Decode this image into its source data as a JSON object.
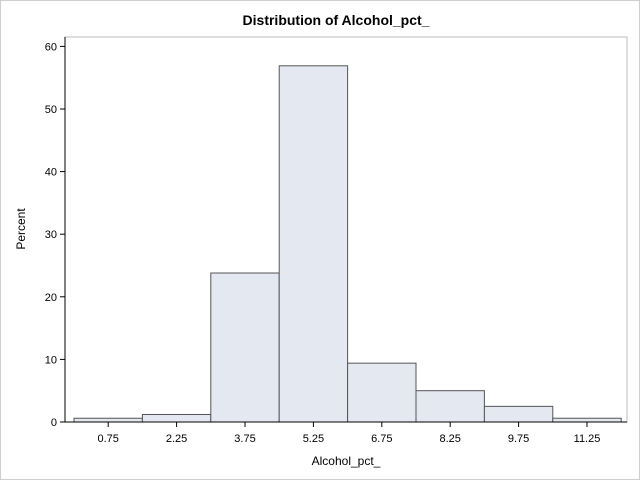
{
  "chart_data": {
    "type": "bar",
    "title": "Distribution of Alcohol_pct_",
    "xlabel": "Alcohol_pct_",
    "ylabel": "Percent",
    "categories": [
      "0.75",
      "2.25",
      "3.75",
      "5.25",
      "6.75",
      "8.25",
      "9.75",
      "11.25"
    ],
    "values": [
      0.6,
      1.2,
      23.8,
      56.9,
      9.4,
      5.0,
      2.5,
      0.6
    ],
    "ylim": [
      0,
      61.5
    ],
    "yticks": [
      "0",
      "10",
      "20",
      "30",
      "40",
      "50",
      "60"
    ],
    "grid": false,
    "bar_fill": "#e3e8f1",
    "bar_stroke": "#555555"
  }
}
